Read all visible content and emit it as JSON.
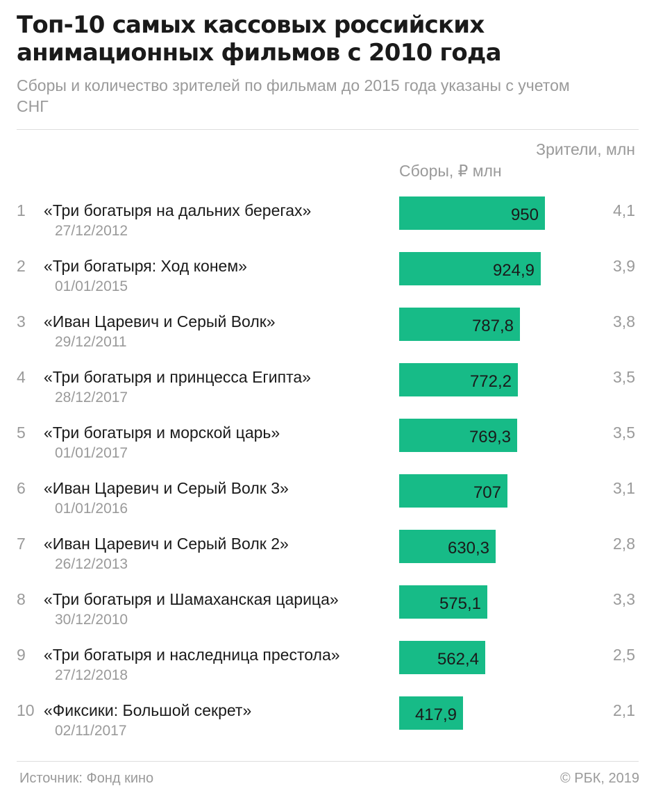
{
  "header": {
    "title": "Топ-10 самых кассовых российских анимационных фильмов с 2010 года",
    "subtitle": "Сборы и количество зрителей по фильмам до 2015 года указаны с учетом СНГ"
  },
  "columns": {
    "gross": "Сборы, ₽ млн",
    "viewers": "Зрители, млн"
  },
  "colors": {
    "bar": "#17bb87",
    "bar_label": "#1a1a1a"
  },
  "chart_data": {
    "type": "bar",
    "orientation": "horizontal",
    "title": "Топ-10 самых кассовых российских анимационных фильмов с 2010 года",
    "series_label": "Сборы, ₽ млн",
    "xlim": [
      0,
      950
    ],
    "rows": [
      {
        "rank": "1",
        "title": "«Три богатыря на дальних берегах»",
        "date": "27/12/2012",
        "value": 950,
        "value_label": "950",
        "viewers": "4,1"
      },
      {
        "rank": "2",
        "title": "«Три богатыря: Ход конем»",
        "date": "01/01/2015",
        "value": 924.9,
        "value_label": "924,9",
        "viewers": "3,9"
      },
      {
        "rank": "3",
        "title": "«Иван Царевич и Серый Волк»",
        "date": "29/12/2011",
        "value": 787.8,
        "value_label": "787,8",
        "viewers": "3,8"
      },
      {
        "rank": "4",
        "title": "«Три богатыря и принцесса Египта»",
        "date": "28/12/2017",
        "value": 772.2,
        "value_label": "772,2",
        "viewers": "3,5"
      },
      {
        "rank": "5",
        "title": "«Три богатыря и морской царь»",
        "date": "01/01/2017",
        "value": 769.3,
        "value_label": "769,3",
        "viewers": "3,5"
      },
      {
        "rank": "6",
        "title": "«Иван Царевич и Серый Волк 3»",
        "date": "01/01/2016",
        "value": 707,
        "value_label": "707",
        "viewers": "3,1"
      },
      {
        "rank": "7",
        "title": "«Иван Царевич и Серый Волк 2»",
        "date": "26/12/2013",
        "value": 630.3,
        "value_label": "630,3",
        "viewers": "2,8"
      },
      {
        "rank": "8",
        "title": "«Три богатыря и Шамаханская царица»",
        "date": "30/12/2010",
        "value": 575.1,
        "value_label": "575,1",
        "viewers": "3,3"
      },
      {
        "rank": "9",
        "title": "«Три богатыря и наследница престола»",
        "date": "27/12/2018",
        "value": 562.4,
        "value_label": "562,4",
        "viewers": "2,5"
      },
      {
        "rank": "10",
        "title": "«Фиксики: Большой секрет»",
        "date": "02/11/2017",
        "value": 417.9,
        "value_label": "417,9",
        "viewers": "2,1"
      }
    ]
  },
  "footer": {
    "source": "Источник: Фонд кино",
    "copyright": "© РБК, 2019"
  }
}
